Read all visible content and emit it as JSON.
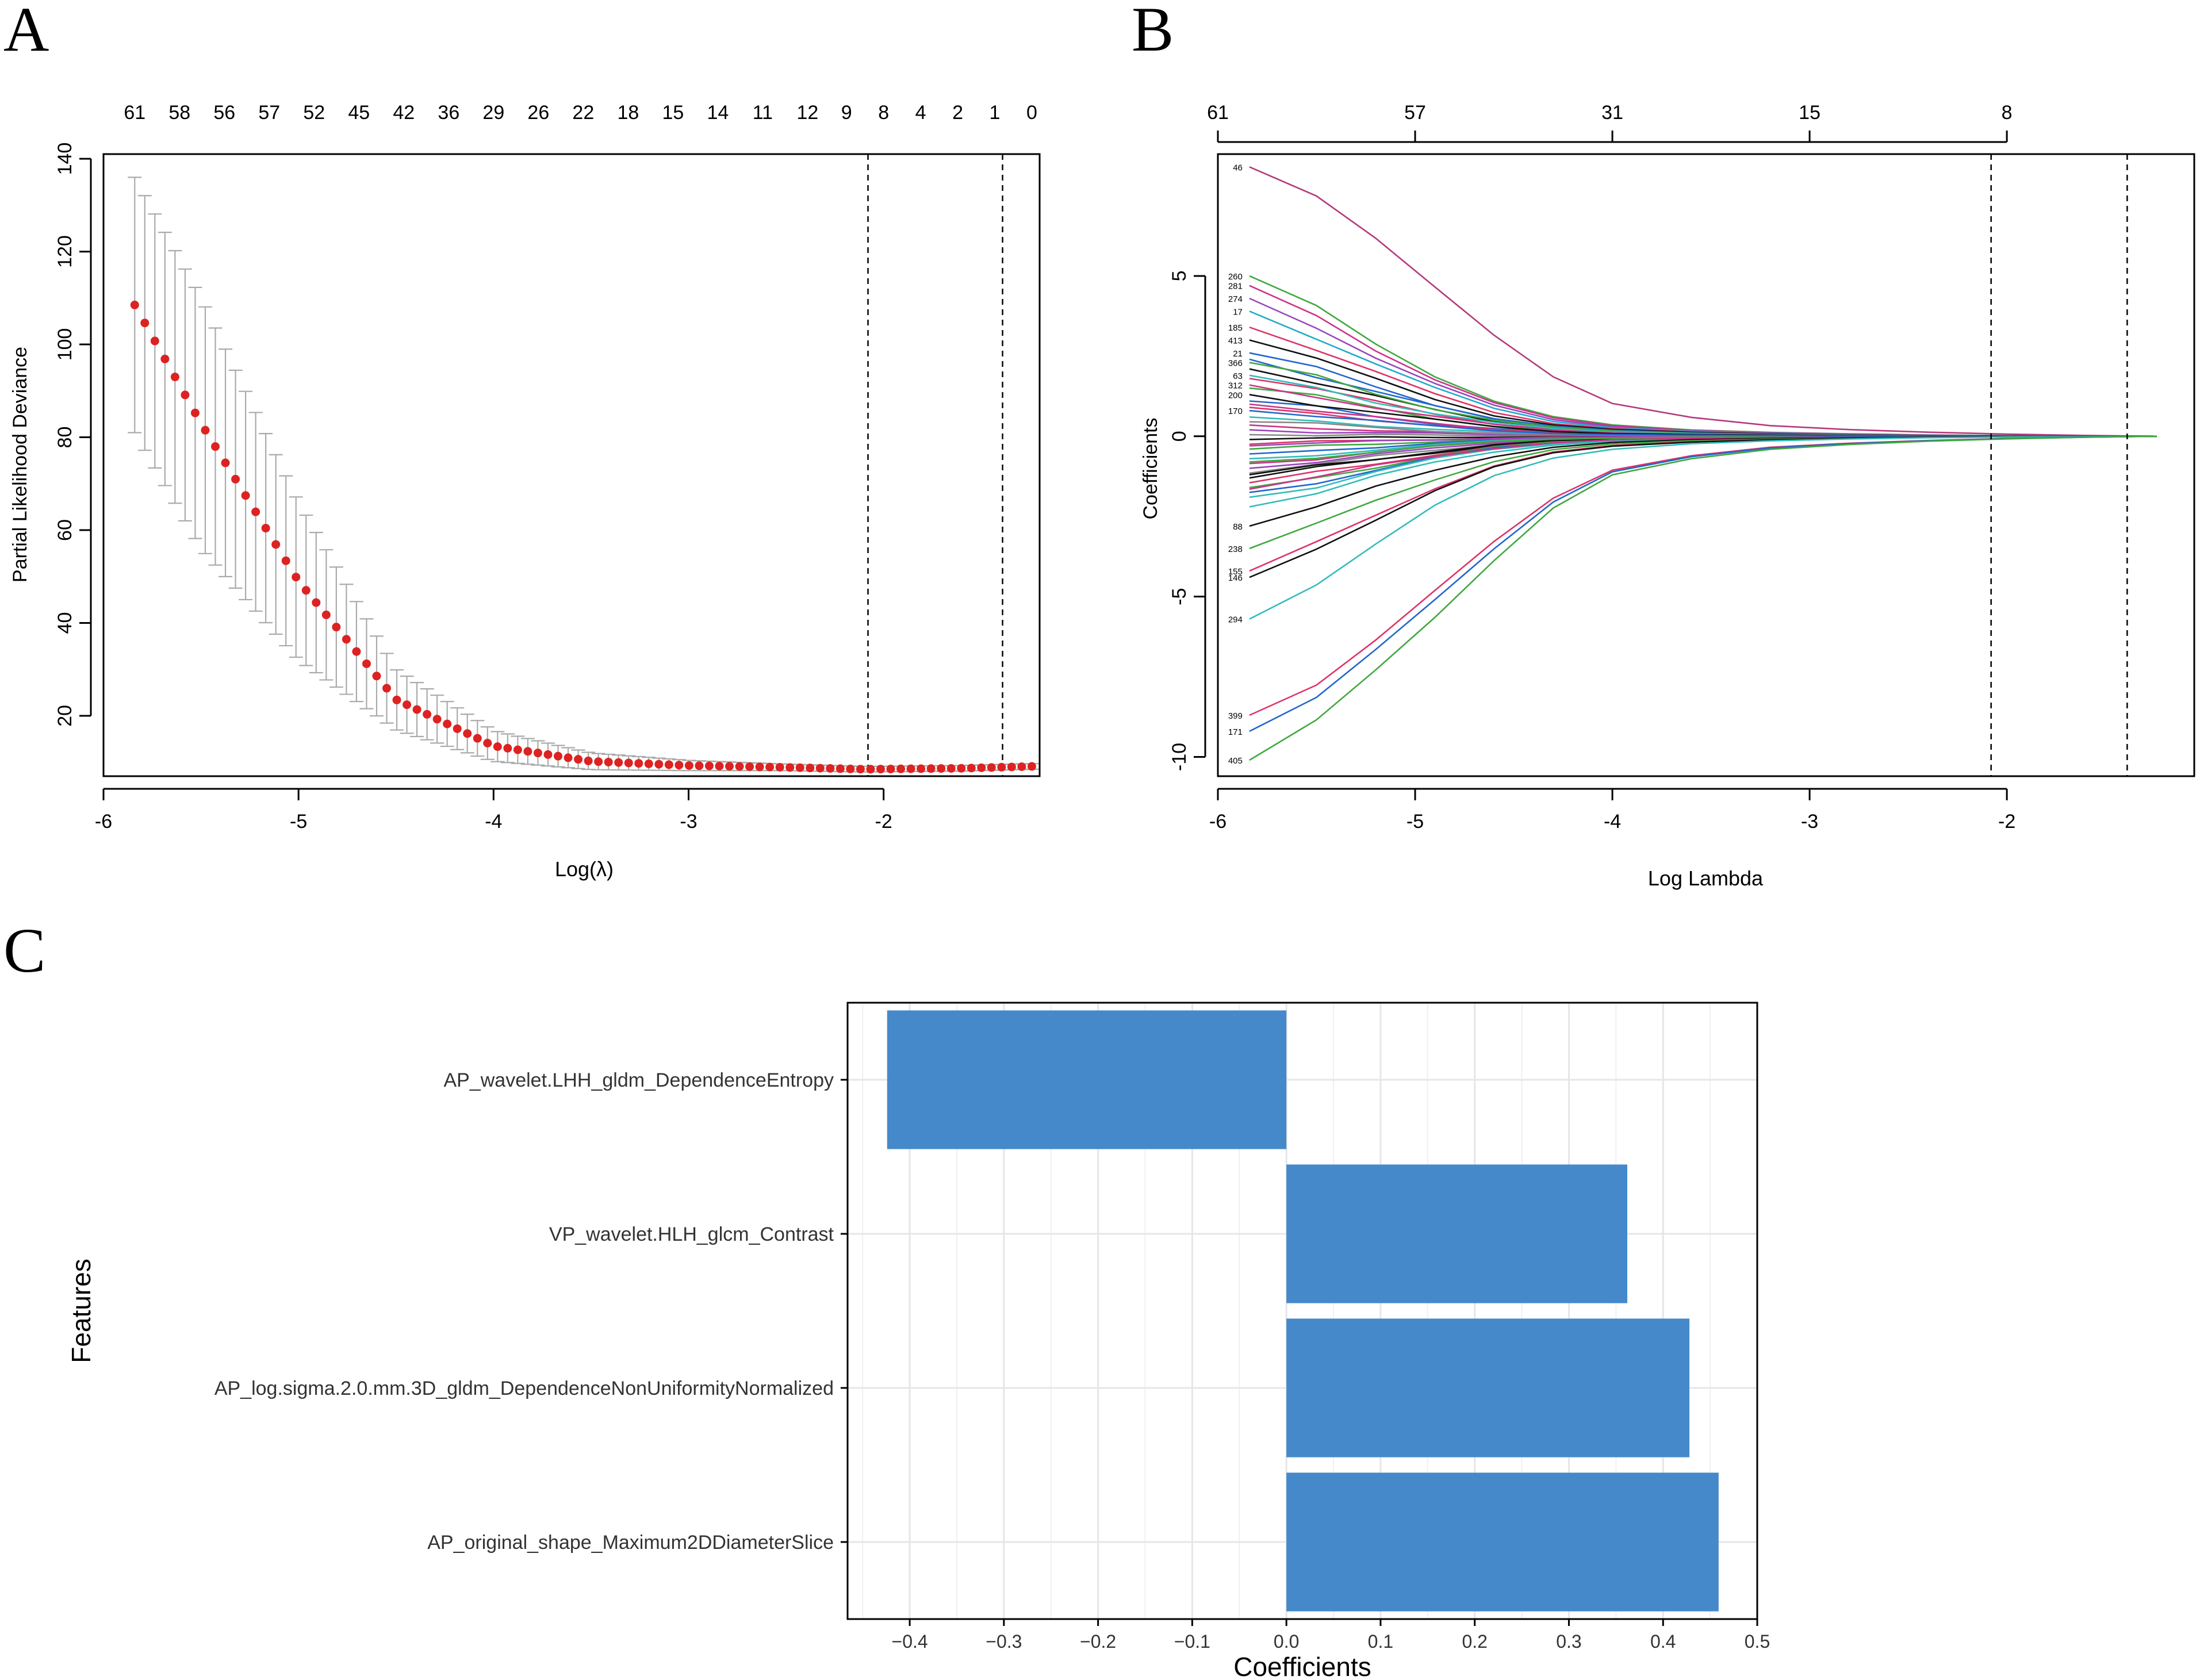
{
  "panels": {
    "a": {
      "letter": "A"
    },
    "b": {
      "letter": "B"
    },
    "c": {
      "letter": "C"
    }
  },
  "colors": {
    "axis": "#000000",
    "error_bar": "#aaaaaa",
    "dot": "#dd2222",
    "bar_fill": "#4689cb",
    "grid": "#e6e6e6"
  },
  "chart_data": [
    {
      "type": "scatter",
      "panel": "A",
      "title": "",
      "xlabel": "Log(λ)",
      "ylabel": "Partial Likelihood Deviance",
      "xlim": [
        -6.0,
        -1.2
      ],
      "ylim": [
        7,
        141
      ],
      "x_ticks": [
        -6,
        -5,
        -4,
        -3,
        -2
      ],
      "y_ticks": [
        20,
        40,
        60,
        80,
        100,
        120,
        140
      ],
      "top_axis_ticks": [
        {
          "x": -5.84,
          "label": "61"
        },
        {
          "x": -5.61,
          "label": "58"
        },
        {
          "x": -5.38,
          "label": "56"
        },
        {
          "x": -5.15,
          "label": "57"
        },
        {
          "x": -4.92,
          "label": "52"
        },
        {
          "x": -4.69,
          "label": "45"
        },
        {
          "x": -4.46,
          "label": "42"
        },
        {
          "x": -4.23,
          "label": "36"
        },
        {
          "x": -4.0,
          "label": "29"
        },
        {
          "x": -3.77,
          "label": "26"
        },
        {
          "x": -3.54,
          "label": "22"
        },
        {
          "x": -3.31,
          "label": "18"
        },
        {
          "x": -3.08,
          "label": "15"
        },
        {
          "x": -2.85,
          "label": "14"
        },
        {
          "x": -2.62,
          "label": "11"
        },
        {
          "x": -2.39,
          "label": "12"
        },
        {
          "x": -2.19,
          "label": "9"
        },
        {
          "x": -2.0,
          "label": "8"
        },
        {
          "x": -1.81,
          "label": "4"
        },
        {
          "x": -1.62,
          "label": "2"
        },
        {
          "x": -1.43,
          "label": "1"
        },
        {
          "x": -1.24,
          "label": "0"
        }
      ],
      "reference_lines_x": [
        -2.08,
        -1.39
      ],
      "lambda_min_x": -5.84,
      "lambda_max_x": -1.24,
      "n_points": 90,
      "series": [
        {
          "name": "mean_deviance",
          "x": [
            -5.84,
            -5.5,
            -5.0,
            -4.5,
            -4.0,
            -3.5,
            -3.0,
            -2.5,
            -2.1,
            -1.6,
            -1.24
          ],
          "values": [
            108.5,
            83.0,
            49.0,
            23.5,
            13.5,
            10.2,
            9.3,
            8.9,
            8.5,
            8.7,
            9.1
          ]
        },
        {
          "name": "upper_error",
          "x": [
            -5.84,
            -5.5,
            -5.0,
            -4.5,
            -4.0,
            -3.5,
            -3.0,
            -2.5,
            -2.1,
            -1.6,
            -1.24
          ],
          "values": [
            136,
            110,
            66,
            30,
            16.8,
            12.0,
            10.4,
            9.6,
            9.1,
            9.3,
            9.7
          ]
        },
        {
          "name": "lower_error",
          "x": [
            -5.84,
            -5.5,
            -5.0,
            -4.5,
            -4.0,
            -3.5,
            -3.0,
            -2.5,
            -2.1,
            -1.6,
            -1.24
          ],
          "values": [
            81,
            56,
            32,
            17,
            10.2,
            8.4,
            8.2,
            8.2,
            7.9,
            8.1,
            8.5
          ]
        }
      ]
    },
    {
      "type": "line",
      "panel": "B",
      "title": "",
      "xlabel": "Log Lambda",
      "ylabel": "Coefficients",
      "xlim": [
        -6.0,
        -1.05
      ],
      "ylim": [
        -10.6,
        8.8
      ],
      "x_ticks": [
        -6,
        -5,
        -4,
        -3,
        -2
      ],
      "y_ticks": [
        -10,
        -5,
        0,
        5
      ],
      "top_axis_ticks": [
        {
          "x": -6,
          "label": "61"
        },
        {
          "x": -5,
          "label": "57"
        },
        {
          "x": -4,
          "label": "31"
        },
        {
          "x": -3,
          "label": "15"
        },
        {
          "x": -2,
          "label": "8"
        }
      ],
      "reference_lines_x": [
        -2.08,
        -1.39
      ],
      "path_start_x": -5.84,
      "path_end_x": -1.24,
      "shape_points_x": [
        -5.84,
        -5.5,
        -5.2,
        -4.9,
        -4.6,
        -4.3,
        -4.0,
        -3.6,
        -3.2,
        -2.8,
        -2.4,
        -2.0,
        -1.6,
        -1.24
      ],
      "labelled_paths": [
        {
          "label": "46",
          "start": 8.4,
          "color": "#b5397a",
          "shape": "steep"
        },
        {
          "label": "260",
          "start": 5.0,
          "color": "#3fa83f",
          "shape": "mid"
        },
        {
          "label": "281",
          "start": 4.7,
          "color": "#cc3388",
          "shape": "mid"
        },
        {
          "label": "274",
          "start": 4.3,
          "color": "#9944bb",
          "shape": "mid"
        },
        {
          "label": "17",
          "start": 3.9,
          "color": "#22aacc",
          "shape": "mid"
        },
        {
          "label": "185",
          "start": 3.4,
          "color": "#dd3366",
          "shape": "mid"
        },
        {
          "label": "413",
          "start": 3.0,
          "color": "#111111",
          "shape": "mid"
        },
        {
          "label": "21",
          "start": 2.6,
          "color": "#2266cc",
          "shape": "mid"
        },
        {
          "label": "366",
          "start": 2.3,
          "color": "#3fa83f",
          "shape": "mid"
        },
        {
          "label": "63",
          "start": 1.9,
          "color": "#33bbbb",
          "shape": "mid"
        },
        {
          "label": "312",
          "start": 1.6,
          "color": "#cc3388",
          "shape": "mid"
        },
        {
          "label": "200",
          "start": 1.3,
          "color": "#111111",
          "shape": "mid"
        },
        {
          "label": "170",
          "start": 0.8,
          "color": "#2266cc",
          "shape": "mid"
        },
        {
          "label": "88",
          "start": -2.8,
          "color": "#111111",
          "shape": "mid"
        },
        {
          "label": "238",
          "start": -3.5,
          "color": "#3fa83f",
          "shape": "mid"
        },
        {
          "label": "155",
          "start": -4.2,
          "color": "#dd3366",
          "shape": "mid"
        },
        {
          "label": "146",
          "start": -4.4,
          "color": "#111111",
          "shape": "mid"
        },
        {
          "label": "294",
          "start": -5.7,
          "color": "#33bbbb",
          "shape": "mid"
        },
        {
          "label": "399",
          "start": -8.7,
          "color": "#dd3366",
          "shape": "steep"
        },
        {
          "label": "171",
          "start": -9.2,
          "color": "#2266cc",
          "shape": "steep"
        },
        {
          "label": "405",
          "start": -10.1,
          "color": "#3fa83f",
          "shape": "steep"
        }
      ],
      "unlabelled_path_starts": [
        2.1,
        1.8,
        1.5,
        1.1,
        0.6,
        0.35,
        0.2,
        0.05,
        -0.1,
        -0.25,
        -0.4,
        -0.55,
        -0.7,
        -0.85,
        -1.0,
        -1.15,
        -1.3,
        -1.45,
        -1.6,
        -1.75,
        -1.9,
        1.0,
        -0.3,
        0.45,
        -1.2,
        0.9,
        -0.8,
        2.4,
        -2.2,
        -1.65
      ],
      "palette": [
        "#111111",
        "#dd3366",
        "#3fa83f",
        "#2266cc",
        "#33bbbb",
        "#cc3388",
        "#9944bb",
        "#888888"
      ]
    },
    {
      "type": "bar",
      "panel": "C",
      "orientation": "horizontal",
      "title": "",
      "xlabel": "Coefficients",
      "ylabel": "Features",
      "xlim": [
        -0.466,
        0.5
      ],
      "x_ticks": [
        -0.4,
        -0.3,
        -0.2,
        -0.1,
        0.0,
        0.1,
        0.2,
        0.3,
        0.4,
        0.5
      ],
      "x_tick_labels": [
        "−0.4",
        "−0.3",
        "−0.2",
        "−0.1",
        "0.0",
        "0.1",
        "0.2",
        "0.3",
        "0.4",
        "0.5"
      ],
      "categories": [
        "AP_wavelet.LHH_gldm_DependenceEntropy",
        "VP_wavelet.HLH_glcm_Contrast",
        "AP_log.sigma.2.0.mm.3D_gldm_DependenceNonUniformityNormalized",
        "AP_original_shape_Maximum2DDiameterSlice"
      ],
      "values": [
        -0.424,
        0.362,
        0.428,
        0.459
      ]
    }
  ]
}
